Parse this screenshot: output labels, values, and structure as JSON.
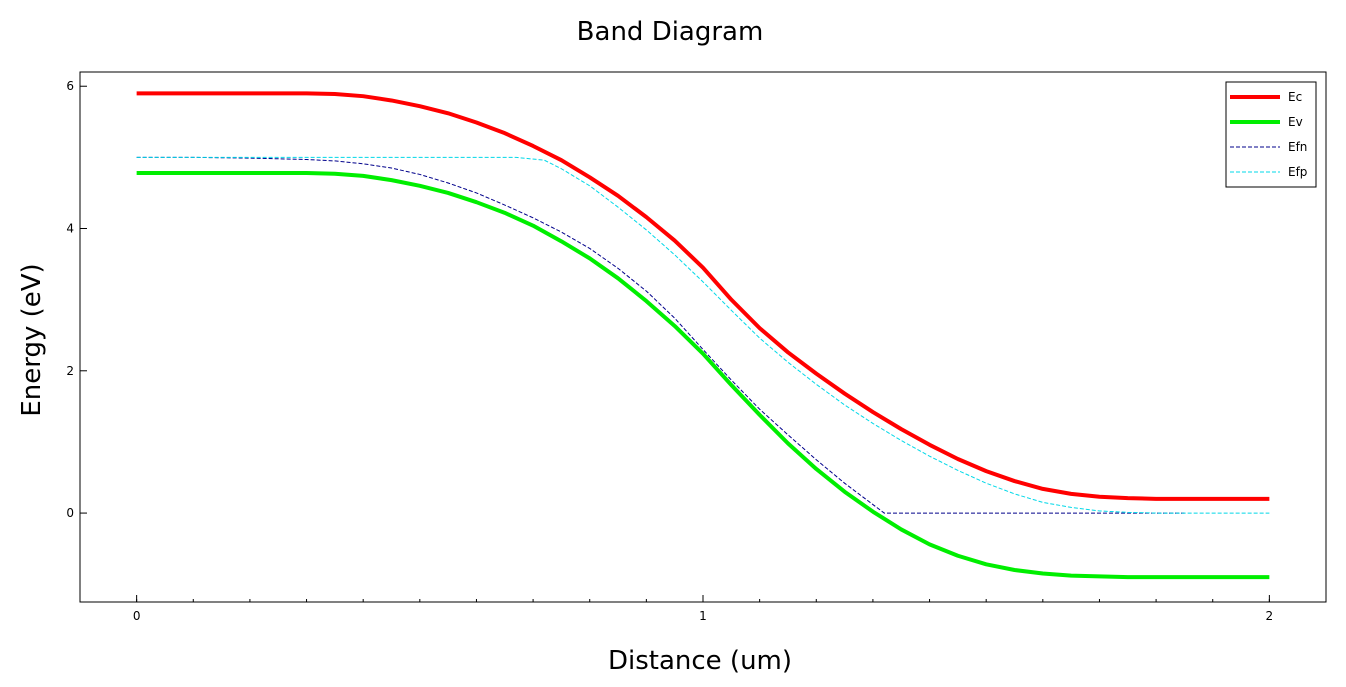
{
  "chart_data": {
    "type": "line",
    "title": "Band Diagram",
    "xlabel": "Distance (um)",
    "ylabel": "Energy (eV)",
    "xlim": [
      -0.1,
      2.1
    ],
    "ylim": [
      -1.25,
      6.2
    ],
    "xticks": [
      0,
      1,
      2
    ],
    "yticks": [
      0,
      2,
      4,
      6
    ],
    "xminor_step": 0.1,
    "grid": false,
    "legend_position": "top-right",
    "series": [
      {
        "name": "Ec",
        "color": "#ff0000",
        "style": "solid",
        "x": [
          0,
          0.1,
          0.2,
          0.3,
          0.35,
          0.4,
          0.45,
          0.5,
          0.55,
          0.6,
          0.65,
          0.7,
          0.75,
          0.8,
          0.85,
          0.9,
          0.95,
          1.0,
          1.05,
          1.1,
          1.15,
          1.2,
          1.25,
          1.3,
          1.35,
          1.4,
          1.45,
          1.5,
          1.55,
          1.6,
          1.65,
          1.7,
          1.75,
          1.8,
          1.9,
          2.0
        ],
        "y": [
          5.9,
          5.9,
          5.9,
          5.9,
          5.89,
          5.86,
          5.8,
          5.72,
          5.62,
          5.49,
          5.34,
          5.16,
          4.96,
          4.72,
          4.46,
          4.16,
          3.83,
          3.45,
          3.0,
          2.6,
          2.26,
          1.96,
          1.68,
          1.42,
          1.18,
          0.96,
          0.76,
          0.59,
          0.45,
          0.34,
          0.27,
          0.23,
          0.21,
          0.2,
          0.2,
          0.2
        ]
      },
      {
        "name": "Ev",
        "color": "#00ee00",
        "style": "solid",
        "x": [
          0,
          0.1,
          0.2,
          0.3,
          0.35,
          0.4,
          0.45,
          0.5,
          0.55,
          0.6,
          0.65,
          0.7,
          0.75,
          0.8,
          0.85,
          0.9,
          0.95,
          1.0,
          1.05,
          1.1,
          1.15,
          1.2,
          1.25,
          1.3,
          1.35,
          1.4,
          1.45,
          1.5,
          1.55,
          1.6,
          1.65,
          1.7,
          1.75,
          1.8,
          1.9,
          2.0
        ],
        "y": [
          4.78,
          4.78,
          4.78,
          4.78,
          4.77,
          4.74,
          4.68,
          4.6,
          4.5,
          4.37,
          4.22,
          4.04,
          3.82,
          3.58,
          3.3,
          2.98,
          2.63,
          2.24,
          1.8,
          1.38,
          0.98,
          0.62,
          0.3,
          0.02,
          -0.23,
          -0.44,
          -0.6,
          -0.72,
          -0.8,
          -0.85,
          -0.88,
          -0.89,
          -0.9,
          -0.9,
          -0.9,
          -0.9
        ]
      },
      {
        "name": "Efn",
        "color": "#00008b",
        "style": "dashed",
        "x": [
          0,
          0.1,
          0.2,
          0.3,
          0.35,
          0.4,
          0.45,
          0.5,
          0.55,
          0.6,
          0.65,
          0.7,
          0.75,
          0.8,
          0.85,
          0.9,
          0.95,
          1.0,
          1.05,
          1.1,
          1.15,
          1.2,
          1.25,
          1.3,
          1.32,
          1.4,
          1.5,
          1.6,
          1.7,
          1.8,
          1.85
        ],
        "y": [
          5.0,
          5.0,
          4.99,
          4.97,
          4.95,
          4.91,
          4.85,
          4.76,
          4.64,
          4.5,
          4.33,
          4.15,
          3.95,
          3.72,
          3.44,
          3.12,
          2.74,
          2.3,
          1.87,
          1.46,
          1.1,
          0.75,
          0.42,
          0.12,
          0.0,
          0.0,
          0.0,
          0.0,
          0.0,
          0.0,
          0.0
        ]
      },
      {
        "name": "Efp",
        "color": "#00d8e8",
        "style": "dashed",
        "x": [
          0,
          0.1,
          0.2,
          0.3,
          0.4,
          0.5,
          0.6,
          0.67,
          0.72,
          0.75,
          0.8,
          0.85,
          0.9,
          0.95,
          1.0,
          1.05,
          1.1,
          1.15,
          1.2,
          1.25,
          1.3,
          1.35,
          1.4,
          1.45,
          1.5,
          1.55,
          1.6,
          1.65,
          1.7,
          1.75,
          1.8,
          1.9,
          2.0
        ],
        "y": [
          5.0,
          5.0,
          5.0,
          5.0,
          5.0,
          5.0,
          5.0,
          5.0,
          4.96,
          4.84,
          4.6,
          4.3,
          3.98,
          3.63,
          3.25,
          2.85,
          2.46,
          2.12,
          1.81,
          1.52,
          1.26,
          1.02,
          0.8,
          0.6,
          0.42,
          0.27,
          0.15,
          0.08,
          0.03,
          0.01,
          0.0,
          0.0,
          0.0
        ]
      }
    ]
  }
}
